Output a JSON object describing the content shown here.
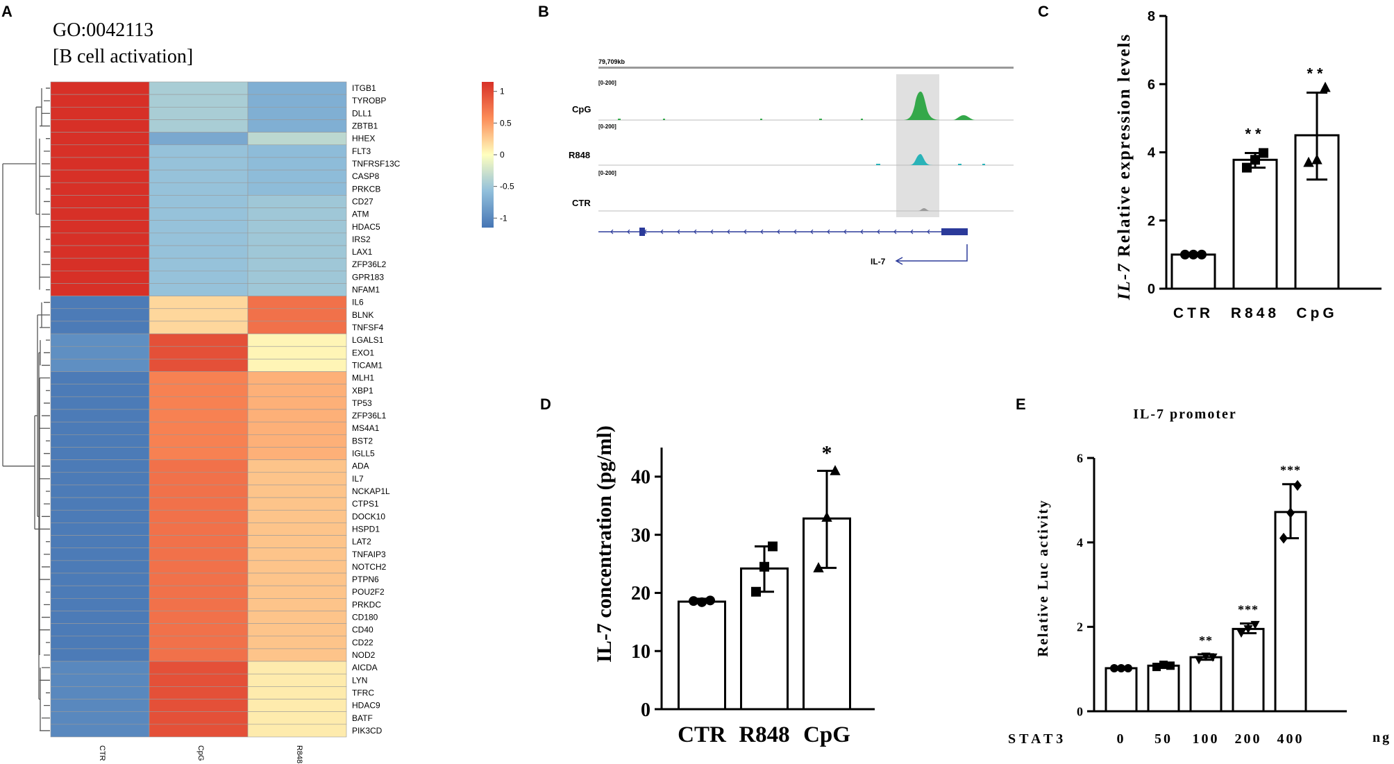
{
  "panel_labels": {
    "a": "A",
    "b": "B",
    "c": "C",
    "d": "D",
    "e": "E"
  },
  "chart_data": [
    {
      "panel": "A",
      "type": "heatmap",
      "title": "GO:0042113",
      "subtitle": "[B cell activation]",
      "columns": [
        "CTR",
        "CpG",
        "R848"
      ],
      "rows": [
        "ITGB1",
        "TYROBP",
        "DLL1",
        "ZBTB1",
        "HHEX",
        "FLT3",
        "TNFRSF13C",
        "CASP8",
        "PRKCB",
        "CD27",
        "ATM",
        "HDAC5",
        "IRS2",
        "LAX1",
        "ZFP36L2",
        "GPR183",
        "NFAM1",
        "IL6",
        "BLNK",
        "TNFSF4",
        "LGALS1",
        "EXO1",
        "TICAM1",
        "MLH1",
        "XBP1",
        "TP53",
        "ZFP36L1",
        "MS4A1",
        "BST2",
        "IGLL5",
        "ADA",
        "IL7",
        "NCKAP1L",
        "CTPS1",
        "DOCK10",
        "HSPD1",
        "LAT2",
        "TNFAIP3",
        "NOTCH2",
        "PTPN6",
        "POU2F2",
        "PRKDC",
        "CD180",
        "CD40",
        "CD22",
        "NOD2",
        "AICDA",
        "LYN",
        "TFRC",
        "HDAC9",
        "BATF",
        "PIK3CD"
      ],
      "values": [
        [
          1.15,
          -0.45,
          -0.7
        ],
        [
          1.15,
          -0.45,
          -0.7
        ],
        [
          1.15,
          -0.45,
          -0.7
        ],
        [
          1.15,
          -0.45,
          -0.7
        ],
        [
          1.15,
          -0.75,
          -0.35
        ],
        [
          1.15,
          -0.55,
          -0.6
        ],
        [
          1.15,
          -0.55,
          -0.6
        ],
        [
          1.15,
          -0.55,
          -0.6
        ],
        [
          1.15,
          -0.55,
          -0.6
        ],
        [
          1.15,
          -0.55,
          -0.5
        ],
        [
          1.15,
          -0.55,
          -0.5
        ],
        [
          1.15,
          -0.55,
          -0.5
        ],
        [
          1.15,
          -0.55,
          -0.5
        ],
        [
          1.15,
          -0.55,
          -0.5
        ],
        [
          1.15,
          -0.55,
          -0.5
        ],
        [
          1.15,
          -0.55,
          -0.5
        ],
        [
          1.15,
          -0.55,
          -0.5
        ],
        [
          -1.1,
          0.2,
          0.75
        ],
        [
          -1.1,
          0.2,
          0.75
        ],
        [
          -1.1,
          0.2,
          0.75
        ],
        [
          -0.95,
          0.95,
          0.05
        ],
        [
          -0.95,
          0.95,
          0.05
        ],
        [
          -0.95,
          0.95,
          0.05
        ],
        [
          -1.1,
          0.65,
          0.4
        ],
        [
          -1.1,
          0.65,
          0.4
        ],
        [
          -1.1,
          0.65,
          0.4
        ],
        [
          -1.1,
          0.65,
          0.4
        ],
        [
          -1.1,
          0.65,
          0.4
        ],
        [
          -1.1,
          0.65,
          0.4
        ],
        [
          -1.1,
          0.65,
          0.4
        ],
        [
          -1.1,
          0.75,
          0.3
        ],
        [
          -1.1,
          0.75,
          0.3
        ],
        [
          -1.1,
          0.75,
          0.3
        ],
        [
          -1.1,
          0.75,
          0.3
        ],
        [
          -1.1,
          0.75,
          0.3
        ],
        [
          -1.1,
          0.75,
          0.3
        ],
        [
          -1.1,
          0.75,
          0.3
        ],
        [
          -1.1,
          0.75,
          0.3
        ],
        [
          -1.1,
          0.75,
          0.3
        ],
        [
          -1.1,
          0.75,
          0.3
        ],
        [
          -1.1,
          0.75,
          0.3
        ],
        [
          -1.1,
          0.75,
          0.3
        ],
        [
          -1.1,
          0.75,
          0.3
        ],
        [
          -1.1,
          0.75,
          0.3
        ],
        [
          -1.1,
          0.75,
          0.3
        ],
        [
          -1.1,
          0.75,
          0.3
        ],
        [
          -1.0,
          0.95,
          0.1
        ],
        [
          -1.0,
          0.95,
          0.1
        ],
        [
          -1.0,
          0.95,
          0.1
        ],
        [
          -1.0,
          0.95,
          0.1
        ],
        [
          -1.0,
          0.95,
          0.1
        ],
        [
          -1.0,
          0.95,
          0.1
        ]
      ],
      "colorbar": {
        "ticks": [
          "1",
          "0.5",
          "0",
          "-0.5",
          "-1"
        ],
        "tick_values": [
          1,
          0.5,
          0,
          -0.5,
          -1
        ],
        "range": [
          -1.15,
          1.15
        ]
      }
    },
    {
      "panel": "B",
      "type": "genome-track",
      "coordinate_label": "79,709kb",
      "range_labels": [
        "[0-200]",
        "[0-200]",
        "[0-200]"
      ],
      "tracks": [
        "CpG",
        "R848",
        "CTR"
      ],
      "track_colors": [
        "#34a84a",
        "#2ab3b8",
        "#9a9a9a"
      ],
      "gene": "IL-7"
    },
    {
      "panel": "C",
      "type": "bar",
      "categories": [
        "CTR",
        "R848",
        "CpG"
      ],
      "values": [
        1.0,
        3.78,
        4.5
      ],
      "error_low": [
        1.0,
        3.55,
        3.2
      ],
      "error_high": [
        1.0,
        3.98,
        5.75
      ],
      "points": [
        [
          1.0,
          1.0,
          1.0
        ],
        [
          3.55,
          3.78,
          3.98
        ],
        [
          3.7,
          3.78,
          5.9
        ]
      ],
      "markers": [
        "circle",
        "square",
        "triangle"
      ],
      "significance": [
        "",
        "**",
        "**"
      ],
      "ylabel_italic": "IL-7",
      "ylabel": "Relative expression levels",
      "ylim": [
        0,
        8
      ],
      "yticks": [
        0,
        2,
        4,
        6,
        8
      ]
    },
    {
      "panel": "D",
      "type": "bar",
      "categories": [
        "CTR",
        "R848",
        "CpG"
      ],
      "values": [
        18.5,
        24.2,
        32.8
      ],
      "error_low": [
        18.3,
        20.2,
        24.3
      ],
      "error_high": [
        19.0,
        28.0,
        41.0
      ],
      "points": [
        [
          18.6,
          18.4,
          18.7
        ],
        [
          20.2,
          24.5,
          28.0
        ],
        [
          24.3,
          33.0,
          41.0
        ]
      ],
      "markers": [
        "circle",
        "square",
        "triangle"
      ],
      "significance": [
        "",
        "",
        "*"
      ],
      "ylabel": "IL-7 concentration (pg/ml)",
      "ylim": [
        0,
        45
      ],
      "yticks": [
        0,
        10,
        20,
        30,
        40
      ]
    },
    {
      "panel": "E",
      "type": "bar",
      "title": "IL-7 promoter",
      "categories": [
        "0",
        "50",
        "100",
        "200",
        "400"
      ],
      "values": [
        1.02,
        1.08,
        1.28,
        1.95,
        4.72
      ],
      "error_low": [
        1.0,
        1.03,
        1.22,
        1.85,
        4.1
      ],
      "error_high": [
        1.05,
        1.12,
        1.35,
        2.08,
        5.38
      ],
      "points": [
        [
          1.02,
          1.02,
          1.02
        ],
        [
          1.05,
          1.1,
          1.08
        ],
        [
          1.22,
          1.3,
          1.28
        ],
        [
          1.85,
          1.95,
          2.05
        ],
        [
          4.1,
          4.7,
          5.35
        ]
      ],
      "markers": [
        "circle",
        "square",
        "triangle-down",
        "triangle-down",
        "diamond"
      ],
      "significance": [
        "",
        "",
        "**",
        "***",
        "***"
      ],
      "xlabel": "STAT3",
      "xunit": "ng",
      "ylabel": "Relative Luc activity",
      "ylim": [
        0,
        6
      ],
      "yticks": [
        0,
        2,
        4,
        6
      ]
    }
  ]
}
